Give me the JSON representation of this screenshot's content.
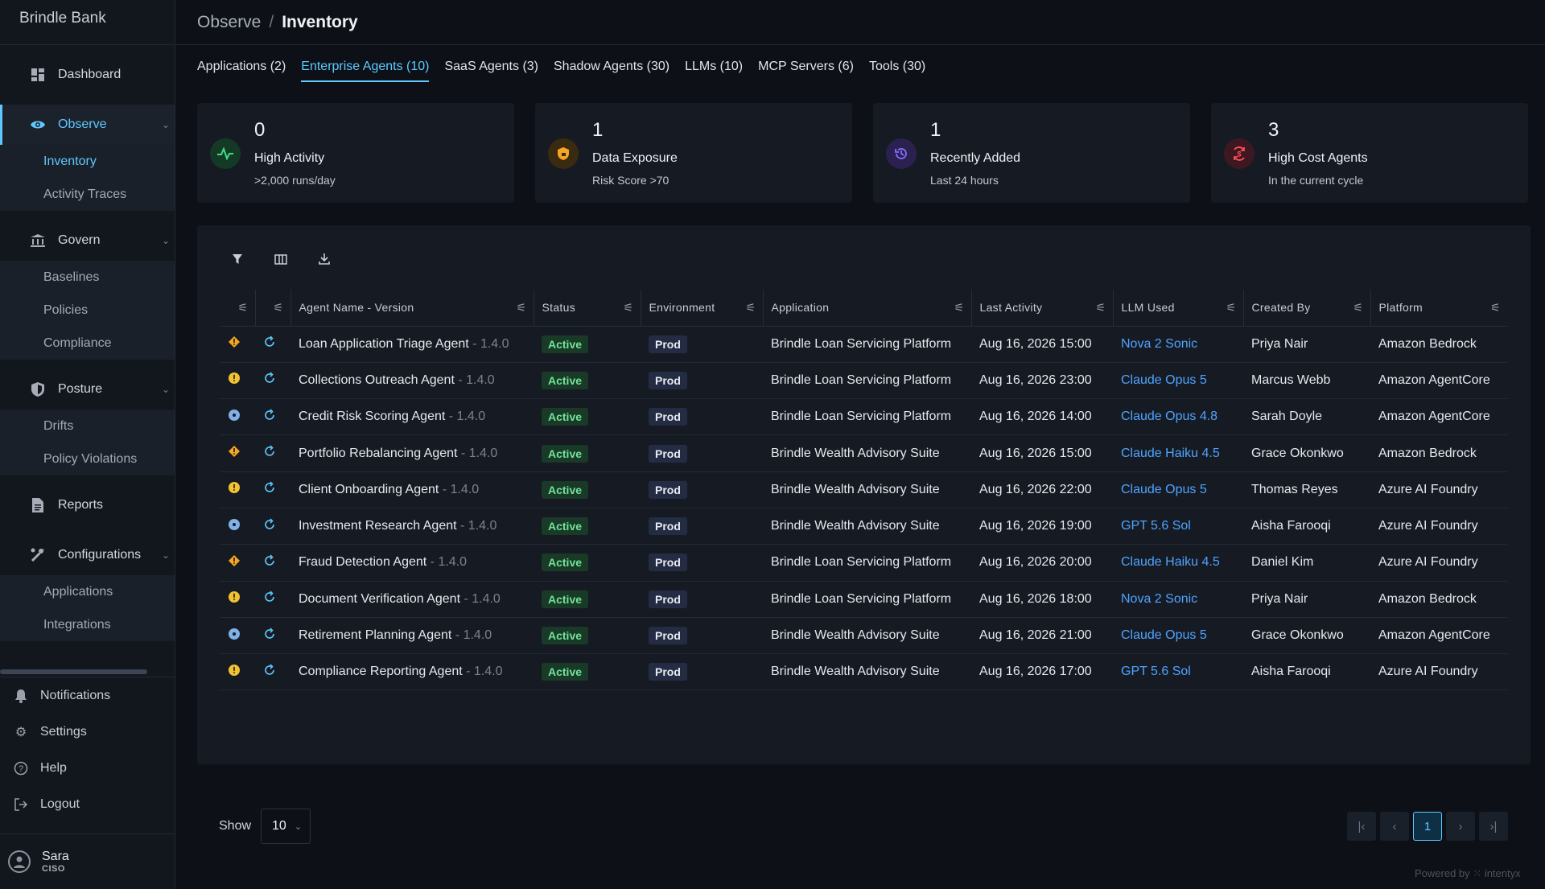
{
  "brand": "Brindle Bank",
  "breadcrumb": {
    "section": "Observe",
    "separator": "/",
    "page": "Inventory"
  },
  "nav": {
    "dashboard": "Dashboard",
    "observe": "Observe",
    "inventory": "Inventory",
    "activity_traces": "Activity Traces",
    "govern": "Govern",
    "baselines": "Baselines",
    "policies": "Policies",
    "compliance": "Compliance",
    "posture": "Posture",
    "drifts": "Drifts",
    "policy_violations": "Policy Violations",
    "reports": "Reports",
    "configurations": "Configurations",
    "applications": "Applications",
    "integrations": "Integrations"
  },
  "bottom_nav": {
    "notifications": "Notifications",
    "settings": "Settings",
    "help": "Help",
    "logout": "Logout"
  },
  "user": {
    "name": "Sara",
    "role": "CISO"
  },
  "tabs": [
    {
      "label": "Applications (2)"
    },
    {
      "label": "Enterprise Agents (10)"
    },
    {
      "label": "SaaS Agents (3)"
    },
    {
      "label": "Shadow Agents (30)"
    },
    {
      "label": "LLMs (10)"
    },
    {
      "label": "MCP Servers (6)"
    },
    {
      "label": "Tools (30)"
    }
  ],
  "cards": [
    {
      "value": "0",
      "title": "High Activity",
      "sub": ">2,000 runs/day",
      "color": "#3ddc84"
    },
    {
      "value": "1",
      "title": "Data Exposure",
      "sub": "Risk Score >70",
      "color": "#f5a623"
    },
    {
      "value": "1",
      "title": "Recently Added",
      "sub": "Last 24 hours",
      "color": "#8b6cff"
    },
    {
      "value": "3",
      "title": "High Cost Agents",
      "sub": "In the current cycle",
      "color": "#ff4d5e"
    }
  ],
  "table": {
    "headers": {
      "name": "Agent Name - Version",
      "status": "Status",
      "environment": "Environment",
      "application": "Application",
      "last_activity": "Last Activity",
      "llm": "LLM Used",
      "created_by": "Created By",
      "platform": "Platform"
    },
    "rows": [
      {
        "risk": "high",
        "name": "Loan Application Triage Agent",
        "version": "- 1.4.0",
        "status": "Active",
        "env": "Prod",
        "app": "Brindle Loan Servicing Platform",
        "last": "Aug 16, 2026 15:00",
        "llm": "Nova 2 Sonic",
        "by": "Priya Nair",
        "platform": "Amazon Bedrock"
      },
      {
        "risk": "medium",
        "name": "Collections Outreach Agent",
        "version": "- 1.4.0",
        "status": "Active",
        "env": "Prod",
        "app": "Brindle Loan Servicing Platform",
        "last": "Aug 16, 2026 23:00",
        "llm": "Claude Opus 5",
        "by": "Marcus Webb",
        "platform": "Amazon AgentCore"
      },
      {
        "risk": "low",
        "name": "Credit Risk Scoring Agent",
        "version": "- 1.4.0",
        "status": "Active",
        "env": "Prod",
        "app": "Brindle Loan Servicing Platform",
        "last": "Aug 16, 2026 14:00",
        "llm": "Claude Opus 4.8",
        "by": "Sarah Doyle",
        "platform": "Amazon AgentCore"
      },
      {
        "risk": "high",
        "name": "Portfolio Rebalancing Agent",
        "version": "- 1.4.0",
        "status": "Active",
        "env": "Prod",
        "app": "Brindle Wealth Advisory Suite",
        "last": "Aug 16, 2026 15:00",
        "llm": "Claude Haiku 4.5",
        "by": "Grace Okonkwo",
        "platform": "Amazon Bedrock"
      },
      {
        "risk": "medium",
        "name": "Client Onboarding Agent",
        "version": "- 1.4.0",
        "status": "Active",
        "env": "Prod",
        "app": "Brindle Wealth Advisory Suite",
        "last": "Aug 16, 2026 22:00",
        "llm": "Claude Opus 5",
        "by": "Thomas Reyes",
        "platform": "Azure AI Foundry"
      },
      {
        "risk": "low",
        "name": "Investment Research Agent",
        "version": "- 1.4.0",
        "status": "Active",
        "env": "Prod",
        "app": "Brindle Wealth Advisory Suite",
        "last": "Aug 16, 2026 19:00",
        "llm": "GPT 5.6 Sol",
        "by": "Aisha Farooqi",
        "platform": "Azure AI Foundry"
      },
      {
        "risk": "high",
        "name": "Fraud Detection Agent",
        "version": "- 1.4.0",
        "status": "Active",
        "env": "Prod",
        "app": "Brindle Loan Servicing Platform",
        "last": "Aug 16, 2026 20:00",
        "llm": "Claude Haiku 4.5",
        "by": "Daniel Kim",
        "platform": "Azure AI Foundry"
      },
      {
        "risk": "medium",
        "name": "Document Verification Agent",
        "version": "- 1.4.0",
        "status": "Active",
        "env": "Prod",
        "app": "Brindle Loan Servicing Platform",
        "last": "Aug 16, 2026 18:00",
        "llm": "Nova 2 Sonic",
        "by": "Priya Nair",
        "platform": "Amazon Bedrock"
      },
      {
        "risk": "low",
        "name": "Retirement Planning Agent",
        "version": "- 1.4.0",
        "status": "Active",
        "env": "Prod",
        "app": "Brindle Wealth Advisory Suite",
        "last": "Aug 16, 2026 21:00",
        "llm": "Claude Opus 5",
        "by": "Grace Okonkwo",
        "platform": "Amazon AgentCore"
      },
      {
        "risk": "medium",
        "name": "Compliance Reporting Agent",
        "version": "- 1.4.0",
        "status": "Active",
        "env": "Prod",
        "app": "Brindle Wealth Advisory Suite",
        "last": "Aug 16, 2026 17:00",
        "llm": "GPT 5.6 Sol",
        "by": "Aisha Farooqi",
        "platform": "Azure AI Foundry"
      }
    ]
  },
  "pagination": {
    "show_label": "Show",
    "page_size": "10",
    "current_page": "1"
  },
  "footer": {
    "powered_by": "Powered by",
    "vendor": "intentyx"
  },
  "colors": {
    "accent": "#5ec8ff",
    "risk_high": "#f5a623",
    "risk_medium": "#f2c230",
    "risk_low": "#7fb0e6"
  }
}
